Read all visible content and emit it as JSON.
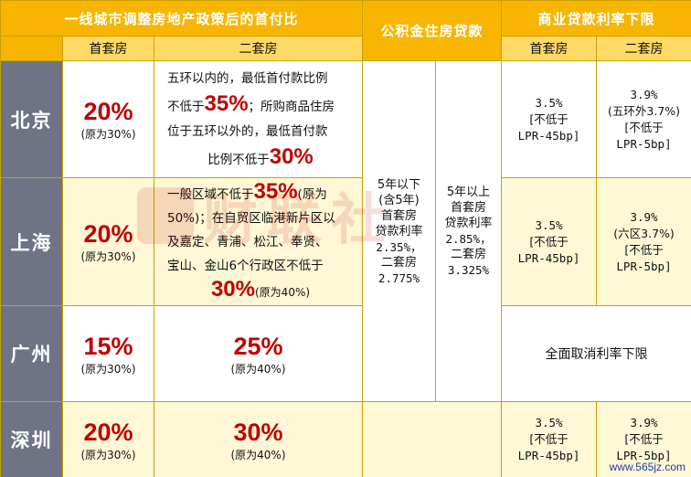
{
  "header": {
    "down_payment_title": "一线城市调整房地产政策后的首付比",
    "provident_fund_title": "公积金住房贷款",
    "commercial_title": "商业贷款利率下限",
    "first_home": "首套房",
    "second_home": "二套房"
  },
  "rows": {
    "beijing": {
      "city": "北京",
      "first_pct": "20%",
      "first_note": "(原为30%)",
      "second_line1": "五环以内的，最低首付款比例",
      "second_pre": "不低于",
      "second_pct1": "35%",
      "second_mid": "；所购商品住房",
      "second_line3": "位于五环以外的，最低首付款",
      "second_line4_pre": "比例不低于",
      "second_pct2": "30%",
      "comm_first_rate": "3.5%",
      "comm_first_b1": "[不低于",
      "comm_first_b2": "LPR-45bp]",
      "comm_second_rate": "3.9%",
      "comm_second_note": "(五环外3.7%)",
      "comm_second_b1": "[不低于",
      "comm_second_b2": "LPR-5bp]"
    },
    "shanghai": {
      "city": "上海",
      "first_pct": "20%",
      "first_note": "(原为30%)",
      "second_l1_pre": "一般区域不低于",
      "second_pct1": "35%",
      "second_l1_post": "(原为",
      "second_l2": "50%)；在自贸区临港新片区以",
      "second_l3": "及嘉定、青浦、松江、奉贤、",
      "second_l4": "宝山、金山6个行政区不低于",
      "second_pct2": "30%",
      "second_note2": "(原为40%)",
      "comm_first_rate": "3.5%",
      "comm_first_b1": "[不低于",
      "comm_first_b2": "LPR-45bp]",
      "comm_second_rate": "3.9%",
      "comm_second_note": "(六区3.7%)",
      "comm_second_b1": "[不低于",
      "comm_second_b2": "LPR-5bp]"
    },
    "guangzhou": {
      "city": "广州",
      "first_pct": "15%",
      "first_note": "(原为30%)",
      "second_pct": "25%",
      "second_note": "(原为40%)",
      "comm_text": "全面取消利率下限"
    },
    "shenzhen": {
      "city": "深圳",
      "first_pct": "20%",
      "first_note": "(原为30%)",
      "second_pct": "30%",
      "second_note": "(原为40%)",
      "comm_first_rate": "3.5%",
      "comm_first_b1": "[不低于",
      "comm_first_b2": "LPR-45bp]",
      "comm_second_rate": "3.9%",
      "comm_second_b1": "[不低于",
      "comm_second_b2": "LPR-5bp]"
    }
  },
  "provident_fund": {
    "col1": [
      "5年以下",
      "(含5年)",
      "首套房",
      "贷款利率",
      "2.35%，",
      "二套房",
      "2.775%"
    ],
    "col2": [
      "5年以上",
      "首套房",
      "贷款利率",
      "2.85%，",
      "二套房",
      "3.325%"
    ]
  },
  "watermark": {
    "text": "财联社"
  },
  "site_watermark": "www.565jz.com",
  "colors": {
    "header_gold": "#f7b500",
    "subheader_yellow": "#ffd966",
    "city_gray": "#6e7485",
    "highlight_red": "#c00000",
    "row_tint": "#fff7d6"
  }
}
